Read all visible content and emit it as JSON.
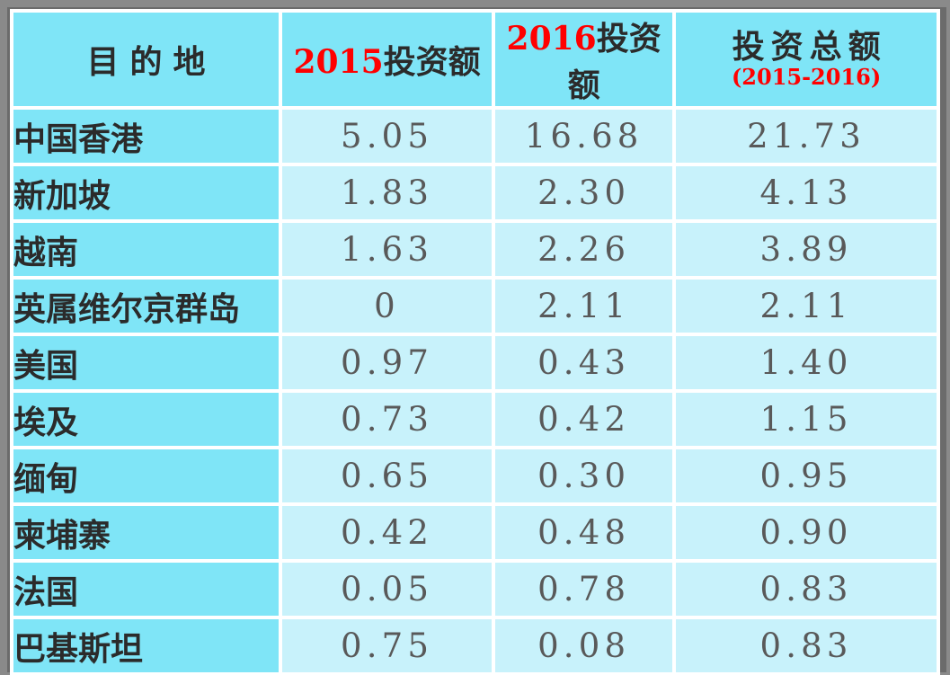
{
  "chart_data": {
    "type": "table",
    "columns": {
      "destination": "目的地",
      "y2015_year": "2015",
      "y2015_label": "投资额",
      "y2016_year": "2016",
      "y2016_label": "投资额",
      "total_title": "投资总额",
      "total_subtitle": "(2015-2016)"
    },
    "rows": [
      [
        "中国香港",
        "5.05",
        "16.68",
        "21.73"
      ],
      [
        "新加坡",
        "1.83",
        "2.30",
        "4.13"
      ],
      [
        "越南",
        "1.63",
        "2.26",
        "3.89"
      ],
      [
        "英属维尔京群岛",
        "0",
        "2.11",
        "2.11"
      ],
      [
        "美国",
        "0.97",
        "0.43",
        "1.40"
      ],
      [
        "埃及",
        "0.73",
        "0.42",
        "1.15"
      ],
      [
        "缅甸",
        "0.65",
        "0.30",
        "0.95"
      ],
      [
        "柬埔寨",
        "0.42",
        "0.48",
        "0.90"
      ],
      [
        "法国",
        "0.05",
        "0.78",
        "0.83"
      ],
      [
        "巴基斯坦",
        "0.75",
        "0.08",
        "0.83"
      ]
    ],
    "series_numeric": [
      {
        "name": "2015投资额",
        "values": [
          5.05,
          1.83,
          1.63,
          0,
          0.97,
          0.73,
          0.65,
          0.42,
          0.05,
          0.75
        ]
      },
      {
        "name": "2016投资额",
        "values": [
          16.68,
          2.3,
          2.26,
          2.11,
          0.43,
          0.42,
          0.3,
          0.48,
          0.78,
          0.08
        ]
      },
      {
        "name": "投资总额(2015-2016)",
        "values": [
          21.73,
          4.13,
          3.89,
          2.11,
          1.4,
          1.15,
          0.95,
          0.9,
          0.83,
          0.83
        ]
      }
    ]
  },
  "colors": {
    "page_background": "#8a8a8a",
    "frame_border": "#6b6b6b",
    "grid_lines": "#ffffff",
    "header_fill": "#7fe5f7",
    "row_label_fill": "#7fe5f7",
    "data_cell_fill": "#c8f2fb",
    "label_text": "#2b2b2b",
    "number_text": "#595959",
    "accent_red": "#ff0000"
  }
}
